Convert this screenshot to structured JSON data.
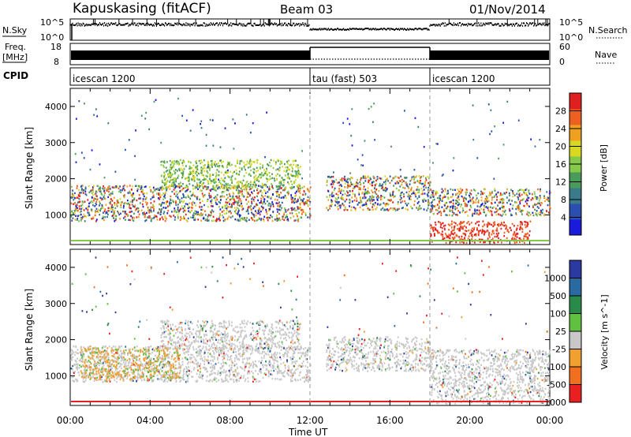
{
  "header": {
    "station": "Kapuskasing (fitACF)",
    "beam": "Beam 03",
    "date": "01/Nov/2014"
  },
  "strips": {
    "nsky_label": "N.Sky",
    "nsky_ticks": [
      "10^5",
      "10^0"
    ],
    "nsearch_label": "N.Search",
    "nsearch_ticks": [
      "10^5",
      "10^0"
    ],
    "freq_label": "Freq.",
    "freq_unit": "[MHz]",
    "freq_ticks": [
      "18",
      "8"
    ],
    "nave_label": "Nave",
    "nave_ticks": [
      "60",
      "0"
    ],
    "cpid_label": "CPID",
    "cpid_segments": [
      {
        "name": "icescan 1200",
        "start_hour": 0,
        "end_hour": 12
      },
      {
        "name": "tau (fast) 503",
        "start_hour": 12,
        "end_hour": 18
      },
      {
        "name": "icescan 1200",
        "start_hour": 18,
        "end_hour": 24
      }
    ]
  },
  "chart_data": [
    {
      "type": "heatmap",
      "title": "",
      "quantity": "Power",
      "xlabel": "Time UT",
      "ylabel": "Slant Range [km]",
      "xlim_hours": [
        0,
        24
      ],
      "ylim_km": [
        180,
        4500
      ],
      "x_ticks": [
        "00:00",
        "04:00",
        "08:00",
        "12:00",
        "16:00",
        "20:00",
        "00:00"
      ],
      "y_ticks": [
        "1000",
        "2000",
        "3000",
        "4000"
      ],
      "colorbar_label": "Power [dB]",
      "colorbar_ticks": [
        "4",
        "8",
        "12",
        "16",
        "20",
        "24",
        "28"
      ],
      "colorbar_range": [
        0,
        32
      ],
      "colorbar_colors": [
        "#1a1adc",
        "#2a4fb0",
        "#3a7a8a",
        "#4a9a5a",
        "#86c84a",
        "#d8d820",
        "#f0a020",
        "#ee6020",
        "#e02020"
      ],
      "scatter_regions": [
        {
          "t0": 0.0,
          "t1": 12.0,
          "r0": 850,
          "r1": 1850,
          "value": "mixed_high"
        },
        {
          "t0": 4.5,
          "t1": 11.5,
          "r0": 1750,
          "r1": 2550,
          "value": "low_green"
        },
        {
          "t0": 12.8,
          "t1": 18.0,
          "r0": 1150,
          "r1": 2100,
          "value": "mixed_high"
        },
        {
          "t0": 18.0,
          "t1": 24.0,
          "r0": 1000,
          "r1": 1750,
          "value": "mixed_high"
        },
        {
          "t0": 18.0,
          "t1": 23.0,
          "r0": 250,
          "r1": 850,
          "value": "high_red"
        }
      ]
    },
    {
      "type": "heatmap",
      "title": "",
      "quantity": "Velocity",
      "xlabel": "Time UT",
      "ylabel": "Slant Range [km]",
      "xlim_hours": [
        0,
        24
      ],
      "ylim_km": [
        180,
        4500
      ],
      "x_ticks": [
        "00:00",
        "04:00",
        "08:00",
        "12:00",
        "16:00",
        "20:00",
        "00:00"
      ],
      "y_ticks": [
        "1000",
        "2000",
        "3000",
        "4000"
      ],
      "colorbar_label": "Velocity [m s^-1]",
      "colorbar_ticks": [
        "1000",
        "500",
        "100",
        "25",
        "-25",
        "-100",
        "-500",
        "-1000"
      ],
      "colorbar_colors": [
        "#2a3aa0",
        "#2a6aa0",
        "#2a8a4a",
        "#60c040",
        "#c8c8c8",
        "#f0a030",
        "#f07020",
        "#e82020"
      ],
      "scatter_regions": [
        {
          "t0": 0.0,
          "t1": 12.0,
          "r0": 850,
          "r1": 1850,
          "value": "ground_grey"
        },
        {
          "t0": 0.5,
          "t1": 5.5,
          "r0": 900,
          "r1": 1800,
          "value": "negative_orange"
        },
        {
          "t0": 4.5,
          "t1": 11.5,
          "r0": 1750,
          "r1": 2550,
          "value": "ground_grey"
        },
        {
          "t0": 12.8,
          "t1": 18.0,
          "r0": 1150,
          "r1": 2100,
          "value": "ground_grey"
        },
        {
          "t0": 18.0,
          "t1": 24.0,
          "r0": 250,
          "r1": 1750,
          "value": "ground_grey"
        }
      ]
    }
  ]
}
